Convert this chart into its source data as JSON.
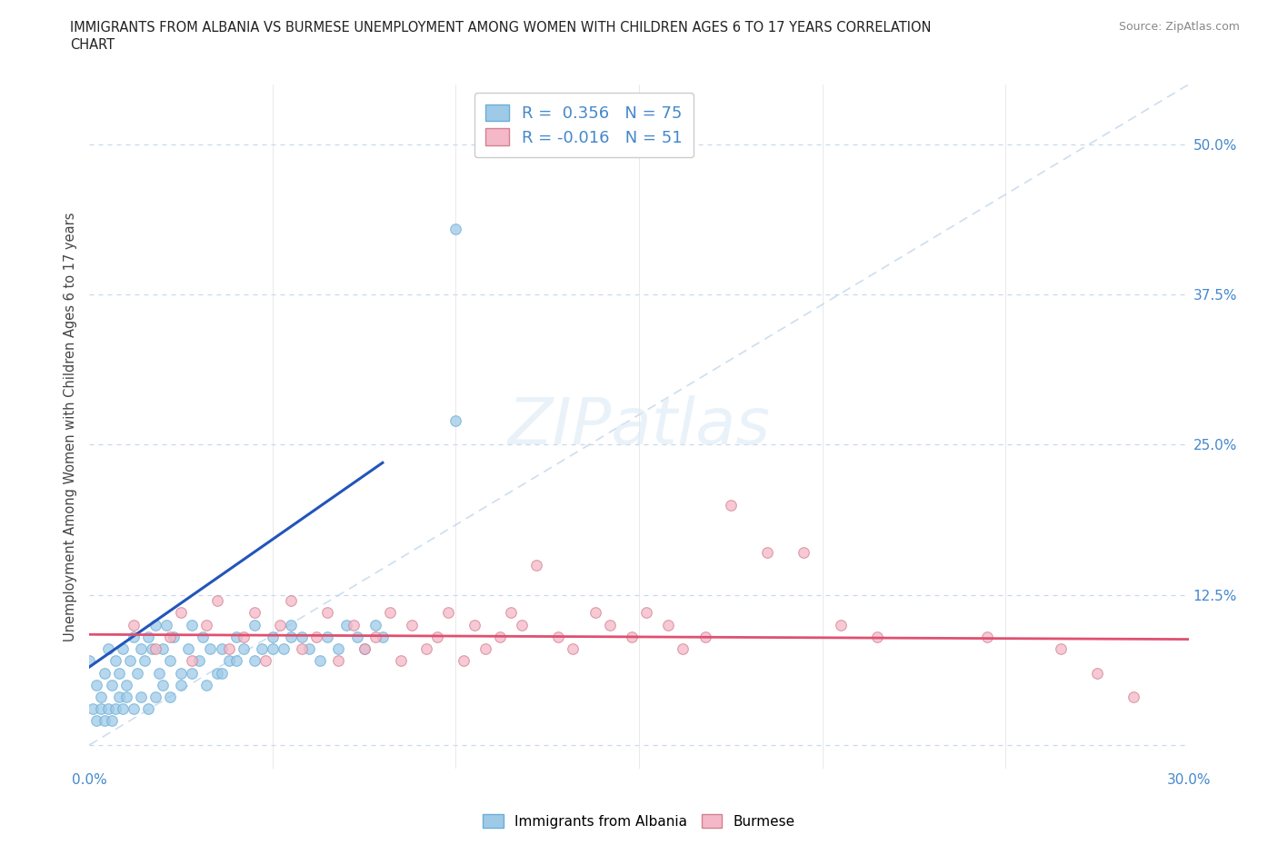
{
  "title_line1": "IMMIGRANTS FROM ALBANIA VS BURMESE UNEMPLOYMENT AMONG WOMEN WITH CHILDREN AGES 6 TO 17 YEARS CORRELATION",
  "title_line2": "CHART",
  "source_text": "Source: ZipAtlas.com",
  "ylabel": "Unemployment Among Women with Children Ages 6 to 17 years",
  "xlim": [
    0.0,
    0.3
  ],
  "ylim": [
    -0.02,
    0.55
  ],
  "x_ticks": [
    0.0,
    0.05,
    0.1,
    0.15,
    0.2,
    0.25,
    0.3
  ],
  "y_ticks": [
    0.0,
    0.125,
    0.25,
    0.375,
    0.5
  ],
  "albania_color": "#9ecae8",
  "burmese_color": "#f4b8c8",
  "albania_edge": "#6baed6",
  "burmese_edge": "#d48090",
  "trend_albania_color": "#2255bb",
  "trend_burmese_color": "#e05070",
  "r_albania": 0.356,
  "n_albania": 75,
  "r_burmese": -0.016,
  "n_burmese": 51,
  "watermark": "ZIPatlas",
  "grid_color": "#c8d8ee",
  "diag_color": "#b8d0e8",
  "tick_color": "#4488cc",
  "albania_x": [
    0.0,
    0.001,
    0.002,
    0.003,
    0.004,
    0.005,
    0.006,
    0.007,
    0.008,
    0.009,
    0.01,
    0.011,
    0.012,
    0.013,
    0.014,
    0.015,
    0.016,
    0.017,
    0.018,
    0.019,
    0.02,
    0.021,
    0.022,
    0.023,
    0.025,
    0.027,
    0.028,
    0.03,
    0.031,
    0.033,
    0.035,
    0.036,
    0.038,
    0.04,
    0.042,
    0.045,
    0.047,
    0.05,
    0.053,
    0.055,
    0.058,
    0.06,
    0.063,
    0.065,
    0.068,
    0.07,
    0.073,
    0.075,
    0.078,
    0.08,
    0.002,
    0.003,
    0.004,
    0.005,
    0.006,
    0.007,
    0.008,
    0.009,
    0.01,
    0.012,
    0.014,
    0.016,
    0.018,
    0.02,
    0.022,
    0.025,
    0.028,
    0.032,
    0.036,
    0.04,
    0.045,
    0.05,
    0.055,
    0.1,
    0.1
  ],
  "albania_y": [
    0.07,
    0.03,
    0.05,
    0.04,
    0.06,
    0.08,
    0.05,
    0.07,
    0.06,
    0.08,
    0.05,
    0.07,
    0.09,
    0.06,
    0.08,
    0.07,
    0.09,
    0.08,
    0.1,
    0.06,
    0.08,
    0.1,
    0.07,
    0.09,
    0.06,
    0.08,
    0.1,
    0.07,
    0.09,
    0.08,
    0.06,
    0.08,
    0.07,
    0.09,
    0.08,
    0.1,
    0.08,
    0.09,
    0.08,
    0.1,
    0.09,
    0.08,
    0.07,
    0.09,
    0.08,
    0.1,
    0.09,
    0.08,
    0.1,
    0.09,
    0.02,
    0.03,
    0.02,
    0.03,
    0.02,
    0.03,
    0.04,
    0.03,
    0.04,
    0.03,
    0.04,
    0.03,
    0.04,
    0.05,
    0.04,
    0.05,
    0.06,
    0.05,
    0.06,
    0.07,
    0.07,
    0.08,
    0.09,
    0.27,
    0.43
  ],
  "burmese_x": [
    0.012,
    0.018,
    0.022,
    0.025,
    0.028,
    0.032,
    0.035,
    0.038,
    0.042,
    0.045,
    0.048,
    0.052,
    0.055,
    0.058,
    0.062,
    0.065,
    0.068,
    0.072,
    0.075,
    0.078,
    0.082,
    0.085,
    0.088,
    0.092,
    0.095,
    0.098,
    0.102,
    0.105,
    0.108,
    0.112,
    0.115,
    0.118,
    0.122,
    0.128,
    0.132,
    0.138,
    0.142,
    0.148,
    0.152,
    0.158,
    0.162,
    0.168,
    0.175,
    0.185,
    0.195,
    0.205,
    0.215,
    0.245,
    0.265,
    0.275,
    0.285
  ],
  "burmese_y": [
    0.1,
    0.08,
    0.09,
    0.11,
    0.07,
    0.1,
    0.12,
    0.08,
    0.09,
    0.11,
    0.07,
    0.1,
    0.12,
    0.08,
    0.09,
    0.11,
    0.07,
    0.1,
    0.08,
    0.09,
    0.11,
    0.07,
    0.1,
    0.08,
    0.09,
    0.11,
    0.07,
    0.1,
    0.08,
    0.09,
    0.11,
    0.1,
    0.15,
    0.09,
    0.08,
    0.11,
    0.1,
    0.09,
    0.11,
    0.1,
    0.08,
    0.09,
    0.2,
    0.16,
    0.16,
    0.1,
    0.09,
    0.09,
    0.08,
    0.06,
    0.04
  ],
  "alb_trend_x": [
    0.0,
    0.08
  ],
  "alb_trend_y": [
    0.065,
    0.235
  ],
  "bur_trend_x": [
    0.0,
    0.3
  ],
  "bur_trend_y": [
    0.092,
    0.088
  ]
}
